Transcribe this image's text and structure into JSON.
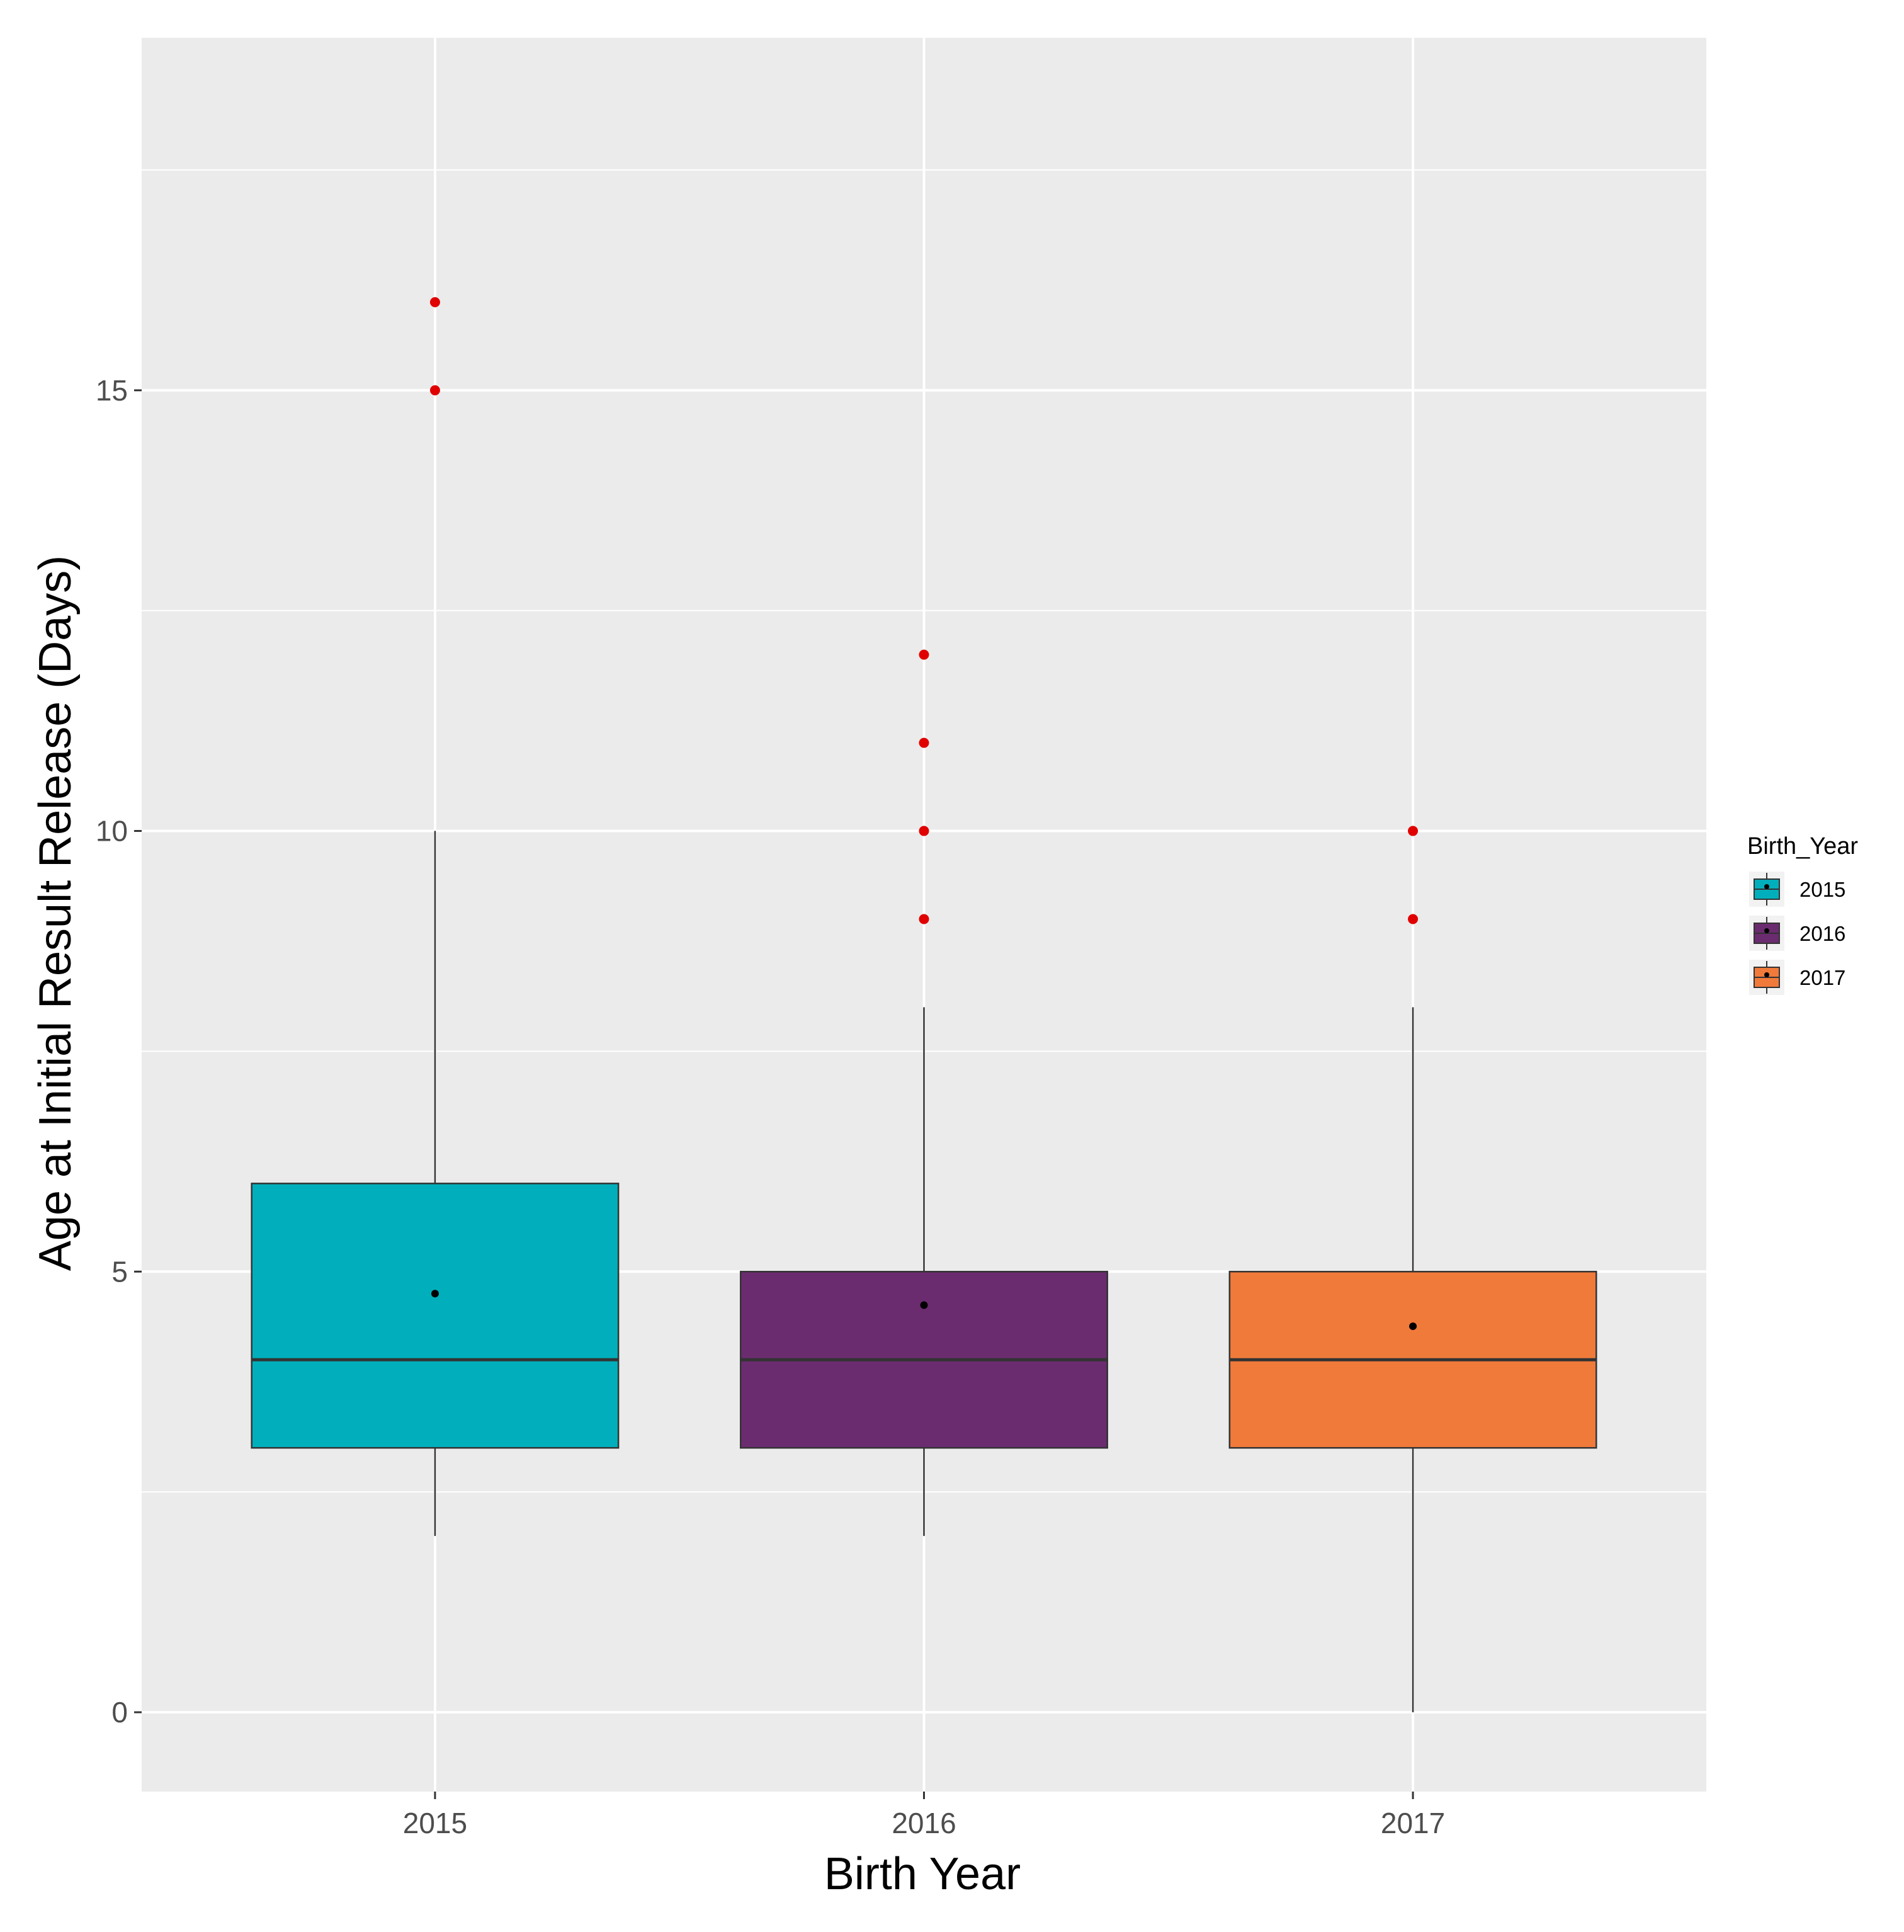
{
  "chart_data": {
    "type": "box",
    "xlabel": "Birth Year",
    "ylabel": "Age at Initial Result Release (Days)",
    "ylim": [
      -0.9,
      19.0
    ],
    "yticks": [
      0,
      5,
      10,
      15
    ],
    "ygrid_minor": [
      2.5,
      7.5,
      12.5,
      17.5
    ],
    "grid": true,
    "categories": [
      "2015",
      "2016",
      "2017"
    ],
    "boxes": [
      {
        "category": "2015",
        "whisker_low": 2,
        "q1": 3,
        "median": 4,
        "q3": 6,
        "whisker_high": 10,
        "mean": 4.75,
        "outliers": [
          15,
          16
        ],
        "color": "#00AFBB"
      },
      {
        "category": "2016",
        "whisker_low": 2,
        "q1": 3,
        "median": 4,
        "q3": 5,
        "whisker_high": 8,
        "mean": 4.62,
        "outliers": [
          9,
          10,
          11,
          12
        ],
        "color": "#6B2C6F"
      },
      {
        "category": "2017",
        "whisker_low": 0,
        "q1": 3,
        "median": 4,
        "q3": 5,
        "whisker_high": 8,
        "mean": 4.38,
        "outliers": [
          9,
          10
        ],
        "color": "#F07A3A"
      }
    ],
    "outlier_color": "#E00000",
    "mean_color": "#000000",
    "panel_background": "#EBEBEB",
    "legend": {
      "title": "Birth_Year",
      "position": "right",
      "entries": [
        {
          "label": "2015",
          "color": "#00AFBB"
        },
        {
          "label": "2016",
          "color": "#6B2C6F"
        },
        {
          "label": "2017",
          "color": "#F07A3A"
        }
      ]
    }
  }
}
